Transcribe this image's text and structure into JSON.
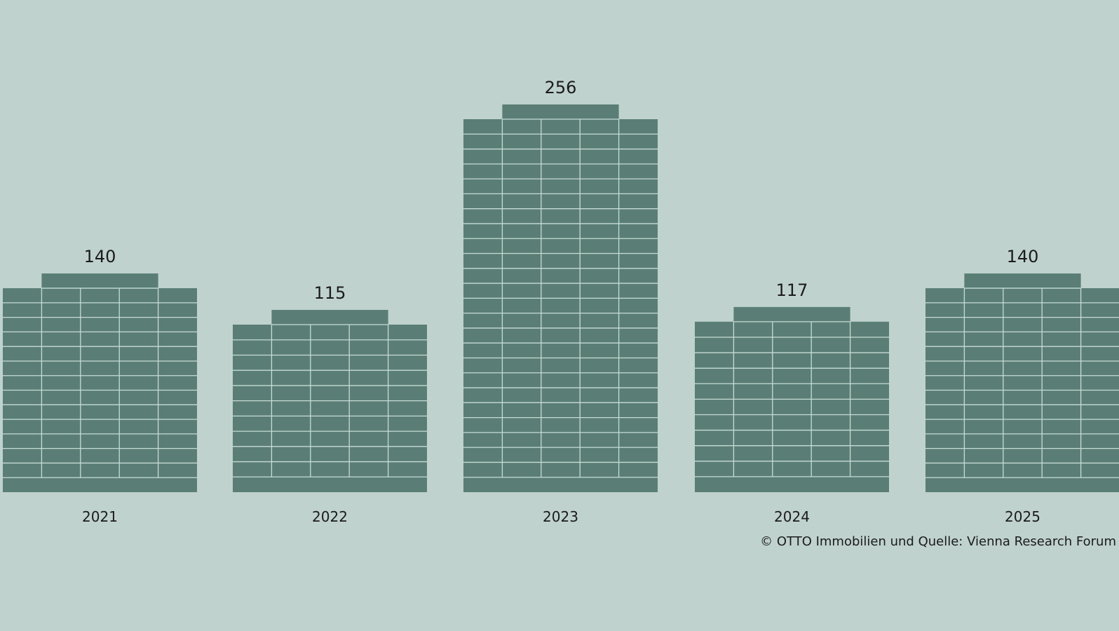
{
  "colors": {
    "background": "#bfd2ce",
    "building": "#5a7e75",
    "grid_lines": "#c6dbd6",
    "text": "#1b1b1b"
  },
  "chart_data": {
    "type": "bar",
    "title": "",
    "xlabel": "",
    "ylabel": "",
    "ylim": [
      0,
      256
    ],
    "grid": false,
    "legend": "none",
    "bar_style": "building",
    "categories": [
      "2021",
      "2022",
      "2023",
      "2024",
      "2025"
    ],
    "values": [
      140,
      115,
      256,
      117,
      140
    ],
    "value_labels": [
      "140",
      "115",
      "256",
      "117",
      "140"
    ]
  },
  "source": {
    "text": "© OTTO Immobilien und Quelle: Vienna Research Forum"
  }
}
